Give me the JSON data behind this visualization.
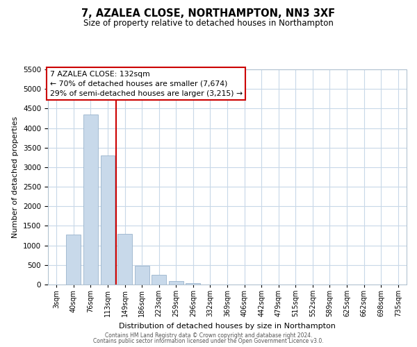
{
  "title": "7, AZALEA CLOSE, NORTHAMPTON, NN3 3XF",
  "subtitle": "Size of property relative to detached houses in Northampton",
  "xlabel": "Distribution of detached houses by size in Northampton",
  "ylabel": "Number of detached properties",
  "bar_labels": [
    "3sqm",
    "40sqm",
    "76sqm",
    "113sqm",
    "149sqm",
    "186sqm",
    "223sqm",
    "259sqm",
    "296sqm",
    "332sqm",
    "369sqm",
    "406sqm",
    "442sqm",
    "479sqm",
    "515sqm",
    "552sqm",
    "589sqm",
    "625sqm",
    "662sqm",
    "698sqm",
    "735sqm"
  ],
  "bar_values": [
    0,
    1270,
    4340,
    3300,
    1290,
    480,
    240,
    80,
    40,
    0,
    0,
    0,
    0,
    0,
    0,
    0,
    0,
    0,
    0,
    0,
    0
  ],
  "bar_color": "#c8d9ea",
  "bar_edgecolor": "#9ab4cc",
  "vline_x": 3.5,
  "vline_color": "#cc0000",
  "ylim": [
    0,
    5500
  ],
  "yticks": [
    0,
    500,
    1000,
    1500,
    2000,
    2500,
    3000,
    3500,
    4000,
    4500,
    5000,
    5500
  ],
  "annotation_title": "7 AZALEA CLOSE: 132sqm",
  "annotation_line1": "← 70% of detached houses are smaller (7,674)",
  "annotation_line2": "29% of semi-detached houses are larger (3,215) →",
  "footer1": "Contains HM Land Registry data © Crown copyright and database right 2024.",
  "footer2": "Contains public sector information licensed under the Open Government Licence v3.0.",
  "background_color": "#ffffff",
  "grid_color": "#c8d8e8"
}
